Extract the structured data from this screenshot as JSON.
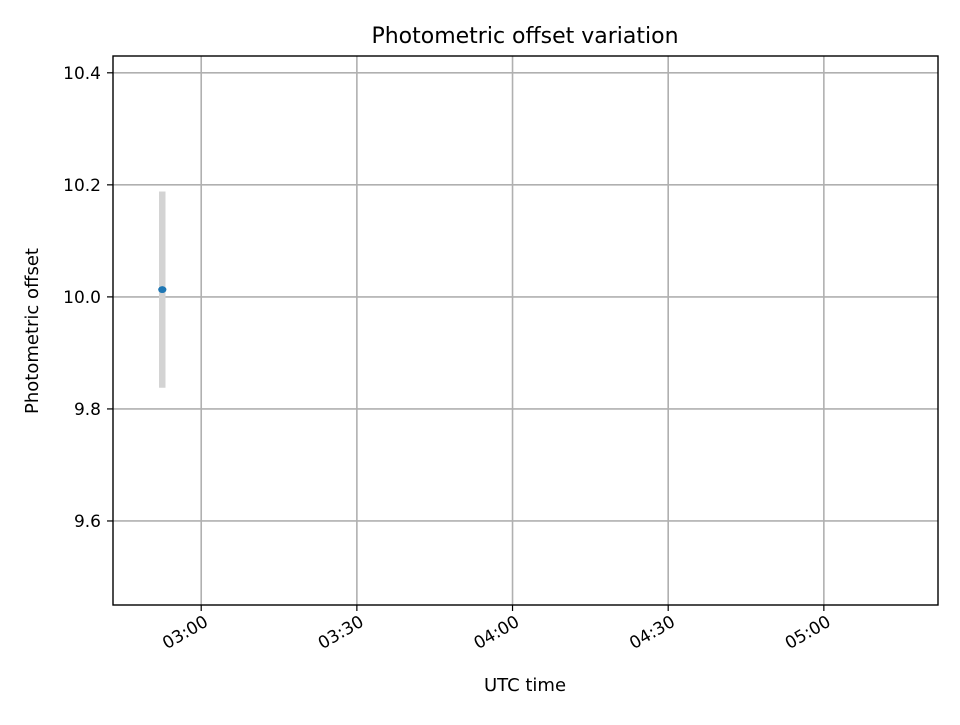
{
  "chart_data": {
    "type": "scatter",
    "title": "Photometric offset variation",
    "xlabel": "UTC time",
    "ylabel": "Photometric offset",
    "time_axis": {
      "range_minutes": [
        2716,
        2730,
        2744,
        2758,
        2772
      ]
    },
    "xlim": [
      "02:43",
      "05:22"
    ],
    "ylim": [
      9.45,
      10.43
    ],
    "x_ticks": [
      "03:00",
      "03:30",
      "04:00",
      "04:30",
      "05:00"
    ],
    "y_ticks": [
      9.6,
      9.8,
      10.0,
      10.2,
      10.4
    ],
    "y_tick_labels": [
      "9.6",
      "9.8",
      "10.0",
      "10.2",
      "10.4"
    ],
    "grid": true,
    "colors": {
      "marker": "#1f77b4",
      "errorbar": "#d3d3d3"
    },
    "points": [
      {
        "x": "02:52:30",
        "y": 10.013,
        "err": 0.175
      },
      {
        "x": "02:52:30",
        "y": 10.013,
        "err": 0.175
      }
    ]
  }
}
